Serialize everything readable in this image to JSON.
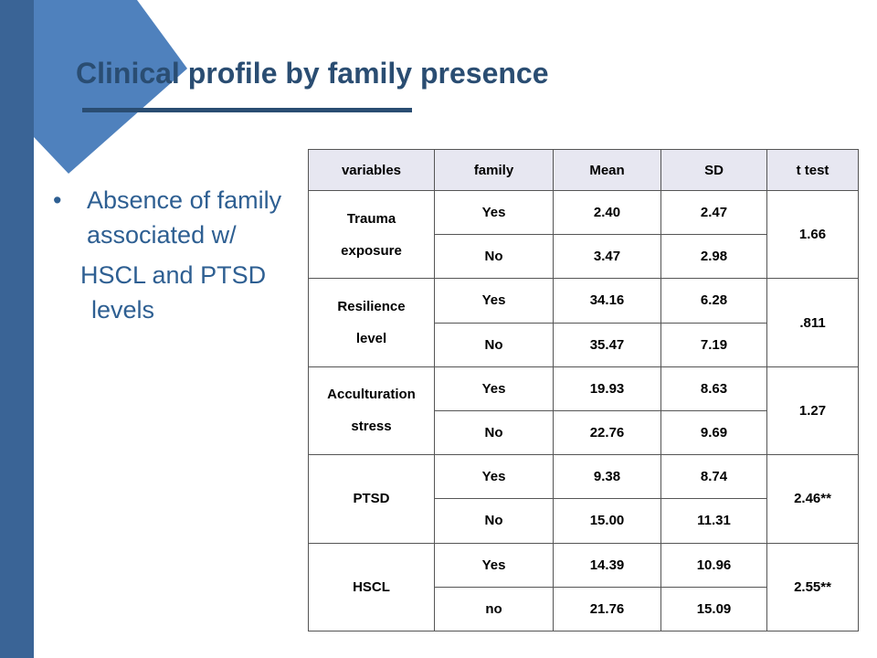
{
  "slide": {
    "title": "Clinical profile by family presence",
    "bullet_marker": "•",
    "bullet_line1": "Absence of family associated w/",
    "bullet_line2": "HSCL and PTSD",
    "bullet_line3": "levels"
  },
  "colors": {
    "accent": "#2a4d72",
    "bar": "#3a6496",
    "shape": "#4f81bd",
    "body_text": "#2e5f92"
  },
  "table": {
    "headers": [
      "variables",
      "family",
      "Mean",
      "SD",
      "t test"
    ],
    "groups": [
      {
        "variable_line1": "Trauma",
        "variable_line2": "exposure",
        "t_test": "1.66",
        "rows": [
          {
            "family": "Yes",
            "mean": "2.40",
            "sd": "2.47"
          },
          {
            "family": "No",
            "mean": "3.47",
            "sd": "2.98"
          }
        ]
      },
      {
        "variable_line1": "Resilience",
        "variable_line2": "level",
        "t_test": ".811",
        "rows": [
          {
            "family": "Yes",
            "mean": "34.16",
            "sd": "6.28"
          },
          {
            "family": "No",
            "mean": "35.47",
            "sd": "7.19"
          }
        ]
      },
      {
        "variable_line1": "Acculturation",
        "variable_line2": "stress",
        "t_test": "1.27",
        "rows": [
          {
            "family": "Yes",
            "mean": "19.93",
            "sd": "8.63"
          },
          {
            "family": "No",
            "mean": "22.76",
            "sd": "9.69"
          }
        ]
      },
      {
        "variable_line1": "PTSD",
        "variable_line2": "",
        "t_test": "2.46**",
        "rows": [
          {
            "family": "Yes",
            "mean": "9.38",
            "sd": "8.74"
          },
          {
            "family": "No",
            "mean": "15.00",
            "sd": "11.31"
          }
        ]
      },
      {
        "variable_line1": "HSCL",
        "variable_line2": "",
        "t_test": "2.55**",
        "rows": [
          {
            "family": "Yes",
            "mean": "14.39",
            "sd": "10.96"
          },
          {
            "family": "no",
            "mean": "21.76",
            "sd": "15.09"
          }
        ]
      }
    ]
  }
}
